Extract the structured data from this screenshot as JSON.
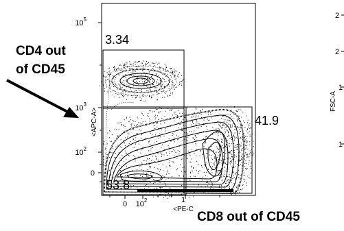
{
  "plot": {
    "y_axis_label": "<APC-A>",
    "x_axis_label": "<PE-C",
    "y_ticks": [
      {
        "base": "10",
        "exp": "5"
      },
      {
        "base": "10",
        "exp": "3"
      },
      {
        "base": "10",
        "exp": "2"
      },
      {
        "base": "0"
      }
    ],
    "x_ticks": [
      {
        "base": "0"
      },
      {
        "base": "10",
        "exp": "2"
      },
      {
        "base": "1"
      }
    ]
  },
  "gates": [
    {
      "value": 3.34
    },
    {
      "value": 41.9
    },
    {
      "value": 53.8
    }
  ],
  "annotations": {
    "cd4": [
      "CD4 out",
      "of CD45"
    ],
    "cd8": "CD8 out of CD45"
  },
  "side_panel": {
    "y_axis_label": "FSC-A",
    "ticks": [
      "2",
      "2",
      "1",
      "1"
    ]
  }
}
